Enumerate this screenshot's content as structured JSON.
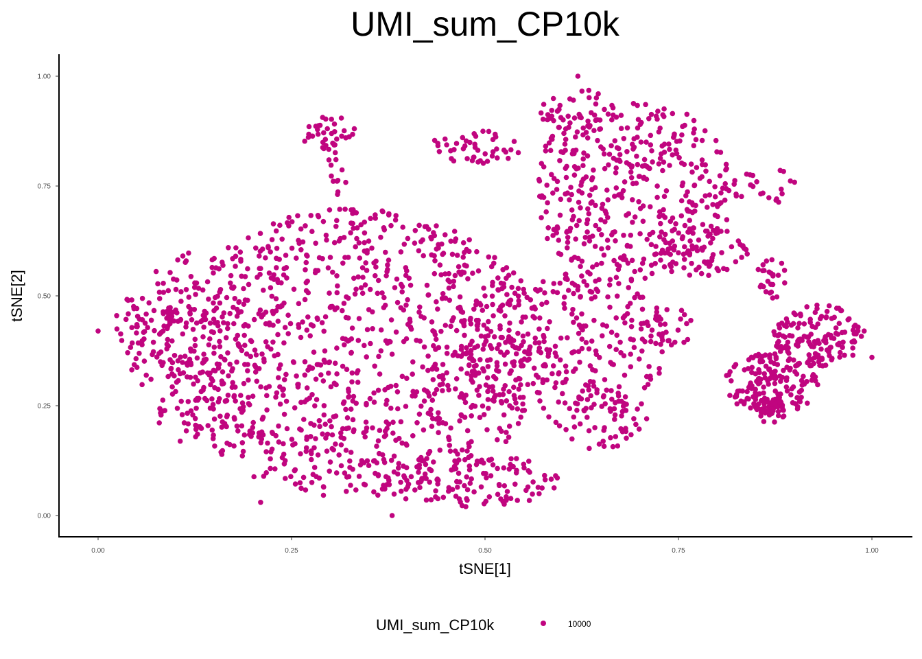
{
  "chart_data": {
    "type": "scatter",
    "title": "UMI_sum_CP10k",
    "xlabel": "tSNE[1]",
    "ylabel": "tSNE[2]",
    "xlim": [
      -0.05,
      1.05
    ],
    "ylim": [
      -0.05,
      1.05
    ],
    "x_ticks": [
      0.0,
      0.25,
      0.5,
      0.75,
      1.0
    ],
    "x_tick_labels": [
      "0.00",
      "0.25",
      "0.50",
      "0.75",
      "1.00"
    ],
    "y_ticks": [
      0.0,
      0.25,
      0.5,
      0.75,
      1.0
    ],
    "y_tick_labels": [
      "0.00",
      "0.25",
      "0.50",
      "0.75",
      "1.00"
    ],
    "grid": false,
    "legend": {
      "title": "UMI_sum_CP10k",
      "position": "bottom",
      "entries": [
        {
          "label": "10000",
          "color": "#c0057f"
        }
      ]
    },
    "point_color": "#c0057f",
    "clusters": [
      {
        "cx": 0.33,
        "cy": 0.37,
        "rx": 0.25,
        "ry": 0.33,
        "n": 1100
      },
      {
        "cx": 0.12,
        "cy": 0.38,
        "rx": 0.08,
        "ry": 0.22,
        "n": 160
      },
      {
        "cx": 0.06,
        "cy": 0.43,
        "rx": 0.05,
        "ry": 0.07,
        "n": 40
      },
      {
        "cx": 0.6,
        "cy": 0.39,
        "rx": 0.14,
        "ry": 0.17,
        "n": 280
      },
      {
        "cx": 0.65,
        "cy": 0.22,
        "rx": 0.06,
        "ry": 0.07,
        "n": 60
      },
      {
        "cx": 0.48,
        "cy": 0.08,
        "rx": 0.12,
        "ry": 0.06,
        "n": 120
      },
      {
        "cx": 0.3,
        "cy": 0.87,
        "rx": 0.04,
        "ry": 0.04,
        "n": 35
      },
      {
        "cx": 0.31,
        "cy": 0.78,
        "rx": 0.015,
        "ry": 0.05,
        "n": 12
      },
      {
        "cx": 0.49,
        "cy": 0.84,
        "rx": 0.06,
        "ry": 0.04,
        "n": 45
      },
      {
        "cx": 0.69,
        "cy": 0.74,
        "rx": 0.13,
        "ry": 0.21,
        "n": 420
      },
      {
        "cx": 0.62,
        "cy": 0.92,
        "rx": 0.05,
        "ry": 0.05,
        "n": 40
      },
      {
        "cx": 0.86,
        "cy": 0.75,
        "rx": 0.05,
        "ry": 0.04,
        "n": 25
      },
      {
        "cx": 0.78,
        "cy": 0.6,
        "rx": 0.07,
        "ry": 0.06,
        "n": 60
      },
      {
        "cx": 0.87,
        "cy": 0.3,
        "rx": 0.06,
        "ry": 0.07,
        "n": 160
      },
      {
        "cx": 0.93,
        "cy": 0.41,
        "rx": 0.06,
        "ry": 0.07,
        "n": 150
      },
      {
        "cx": 0.87,
        "cy": 0.54,
        "rx": 0.02,
        "ry": 0.05,
        "n": 25
      },
      {
        "cx": 0.87,
        "cy": 0.24,
        "rx": 0.02,
        "ry": 0.03,
        "n": 35
      },
      {
        "cx": 0.74,
        "cy": 0.43,
        "rx": 0.03,
        "ry": 0.05,
        "n": 20
      }
    ],
    "extra_points": [
      {
        "x": 0.0,
        "y": 0.42
      },
      {
        "x": 0.38,
        "y": 0.0
      },
      {
        "x": 0.62,
        "y": 1.0
      },
      {
        "x": 1.0,
        "y": 0.36
      },
      {
        "x": 0.99,
        "y": 0.42
      },
      {
        "x": 0.21,
        "y": 0.03
      }
    ]
  }
}
